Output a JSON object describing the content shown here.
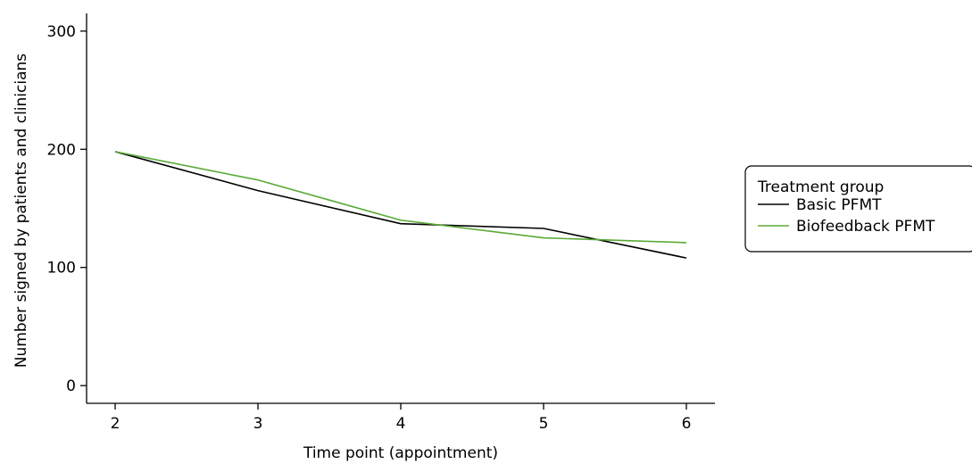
{
  "chart_data": {
    "type": "line",
    "title": "",
    "xlabel": "Time point (appointment)",
    "ylabel": "Number signed by patients and clinicians",
    "x": [
      2,
      3,
      4,
      5,
      6
    ],
    "xlim": [
      1.8,
      6.2
    ],
    "ylim": [
      -15,
      315
    ],
    "xticks": [
      2,
      3,
      4,
      5,
      6
    ],
    "yticks": [
      0,
      100,
      200,
      300
    ],
    "grid": false,
    "legend": {
      "title": "Treatment group",
      "placement": "right"
    },
    "series": [
      {
        "name": "Basic PFMT",
        "color": "#000000",
        "values": [
          198,
          165,
          137,
          133,
          108
        ]
      },
      {
        "name": "Biofeedback PFMT",
        "color": "#5aaa37",
        "values": [
          198,
          174,
          140,
          125,
          121
        ]
      }
    ]
  }
}
